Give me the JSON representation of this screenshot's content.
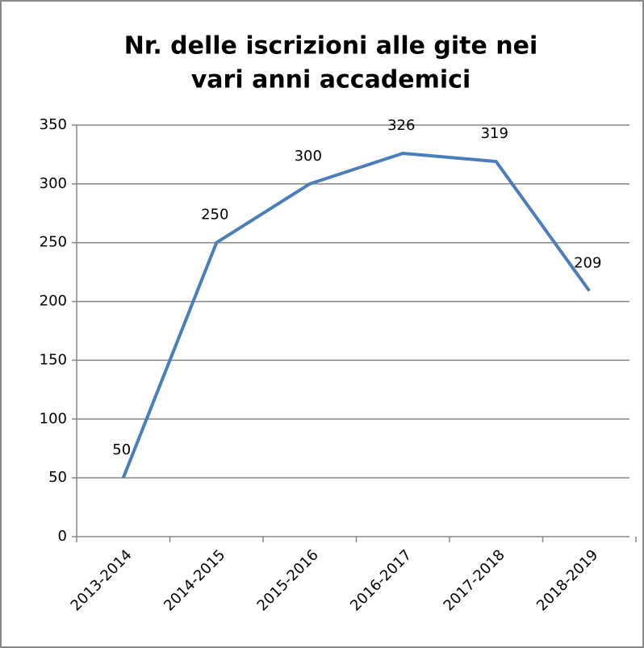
{
  "chart_data": {
    "type": "line",
    "title": [
      "Nr. delle iscrizioni alle gite nei",
      "vari anni accademici"
    ],
    "categories": [
      "2013-2014",
      "2014-2015",
      "2015-2016",
      "2016-2017",
      "2017-2018",
      "2018-2019"
    ],
    "values": [
      50,
      250,
      300,
      326,
      319,
      209
    ],
    "color": "#4a7ebb",
    "ylim": [
      0,
      350
    ],
    "yticks": [
      0,
      50,
      100,
      150,
      200,
      250,
      300,
      350
    ],
    "grid": true
  }
}
